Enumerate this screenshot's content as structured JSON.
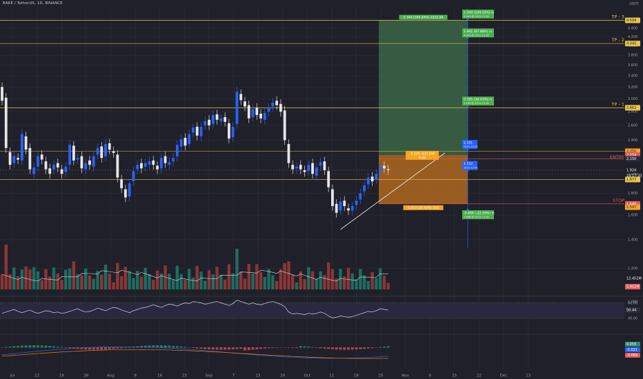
{
  "header": {
    "symbol": "BAKE / TetherUS, 1D, BINANCE",
    "currency": "USDT"
  },
  "chart_data": {
    "type": "candlestick",
    "y_scale": "log",
    "ylim": [
      1.07,
      4.9
    ],
    "price_ticks": [
      "4.600",
      "4.400",
      "4.200",
      "4.000",
      "3.800",
      "3.600",
      "3.400",
      "3.200",
      "3.000",
      "2.800",
      "2.600",
      "2.400",
      "2.200",
      "2.000",
      "1.800",
      "1.600",
      "1.400",
      "1.200",
      "1.000"
    ],
    "x_ticks": [
      "Jul",
      "12",
      "19",
      "26",
      "Aug",
      "9",
      "16",
      "23",
      "Sep",
      "7",
      "13",
      "20",
      "Oct",
      "11",
      "18",
      "25",
      "Nov",
      "8",
      "15",
      "22",
      "Dec",
      "13"
    ],
    "candles": [
      [
        3.2,
        2.97
      ],
      [
        3.02,
        2.3
      ],
      [
        2.25,
        2.1
      ],
      [
        2.12,
        2.2
      ],
      [
        2.18,
        2.16
      ],
      [
        2.15,
        2.48
      ],
      [
        2.45,
        2.28
      ],
      [
        2.3,
        2.05
      ],
      [
        2.0,
        2.07
      ],
      [
        2.08,
        2.2
      ],
      [
        2.22,
        2.16
      ],
      [
        2.14,
        2.05
      ],
      [
        2.06,
        2.0
      ],
      [
        2.05,
        2.1
      ],
      [
        2.12,
        2.07
      ],
      [
        2.05,
        2.0
      ],
      [
        2.02,
        2.08
      ],
      [
        2.1,
        2.34
      ],
      [
        2.33,
        2.15
      ],
      [
        2.16,
        2.18
      ],
      [
        2.2,
        2.06
      ],
      [
        2.05,
        2.12
      ],
      [
        2.15,
        2.1
      ],
      [
        2.08,
        2.2
      ],
      [
        2.22,
        2.3
      ],
      [
        2.32,
        2.18
      ],
      [
        2.2,
        2.35
      ],
      [
        2.36,
        2.28
      ],
      [
        2.26,
        2.24
      ],
      [
        2.22,
        1.96
      ],
      [
        1.94,
        1.85
      ],
      [
        1.84,
        1.76
      ],
      [
        1.77,
        1.9
      ],
      [
        1.92,
        2.03
      ],
      [
        2.05,
        2.1
      ],
      [
        2.12,
        2.06
      ],
      [
        2.08,
        2.12
      ],
      [
        2.1,
        2.14
      ],
      [
        2.15,
        2.1
      ],
      [
        2.09,
        2.05
      ],
      [
        2.06,
        2.18
      ],
      [
        2.2,
        2.12
      ],
      [
        2.1,
        2.13
      ],
      [
        2.14,
        2.18
      ],
      [
        2.2,
        2.34
      ],
      [
        2.32,
        2.41
      ],
      [
        2.43,
        2.33
      ],
      [
        2.35,
        2.48
      ],
      [
        2.5,
        2.57
      ],
      [
        2.58,
        2.46
      ],
      [
        2.45,
        2.58
      ],
      [
        2.6,
        2.66
      ],
      [
        2.68,
        2.6
      ],
      [
        2.62,
        2.75
      ],
      [
        2.76,
        2.68
      ],
      [
        2.66,
        2.7
      ],
      [
        2.72,
        2.65
      ],
      [
        2.63,
        2.42
      ],
      [
        2.44,
        2.58
      ],
      [
        2.62,
        3.12
      ],
      [
        3.08,
        2.98
      ],
      [
        2.96,
        2.88
      ],
      [
        2.9,
        2.7
      ],
      [
        2.72,
        2.84
      ],
      [
        2.86,
        2.75
      ],
      [
        2.77,
        2.7
      ],
      [
        2.68,
        2.78
      ],
      [
        2.8,
        2.86
      ],
      [
        2.88,
        2.94
      ],
      [
        2.97,
        2.9
      ],
      [
        2.92,
        2.8
      ],
      [
        2.82,
        2.4
      ],
      [
        2.35,
        2.12
      ],
      [
        2.1,
        2.05
      ],
      [
        2.06,
        2.08
      ],
      [
        2.1,
        2.05
      ],
      [
        2.04,
        2.02
      ],
      [
        2.03,
        2.1
      ],
      [
        2.12,
        2.0
      ],
      [
        1.98,
        2.07
      ],
      [
        2.09,
        2.13
      ],
      [
        2.14,
        2.04
      ],
      [
        2.03,
        1.86
      ],
      [
        1.84,
        1.68
      ],
      [
        1.7,
        1.62
      ],
      [
        1.64,
        1.72
      ],
      [
        1.73,
        1.68
      ],
      [
        1.66,
        1.64
      ],
      [
        1.64,
        1.68
      ],
      [
        1.69,
        1.73
      ],
      [
        1.74,
        1.8
      ],
      [
        1.82,
        1.88
      ],
      [
        1.89,
        1.96
      ],
      [
        1.97,
        1.92
      ],
      [
        1.94,
        2.0
      ],
      [
        2.02,
        2.08
      ],
      [
        2.09,
        2.06
      ],
      [
        2.05,
        2.04
      ]
    ],
    "price_labels": [
      {
        "text": "TP - 3",
        "price": 4.59,
        "color": "#e8c547"
      },
      {
        "text": "TP - 2",
        "price": 4.05,
        "color": "#e8c547"
      },
      {
        "text": "TP - 1",
        "price": 2.86,
        "color": "#e8c547"
      },
      {
        "text": "ENTRY",
        "price": 2.15,
        "color": "#e05a5a"
      },
      {
        "text": "STOP",
        "price": 1.7,
        "color": "#e05a5a"
      }
    ],
    "right_axis_labels": [
      {
        "text": "4.599",
        "price": 4.59,
        "bg": "#e8c547",
        "fg": "#1f2029"
      },
      {
        "text": "4.045",
        "price": 4.05,
        "bg": "#e8c547",
        "fg": "#1f2029"
      },
      {
        "text": "2.862",
        "price": 2.86,
        "bg": "#e8c547",
        "fg": "#1f2029"
      },
      {
        "text": "2.250",
        "price": 2.26,
        "bg": "#f5a623",
        "fg": "#1f2029"
      },
      {
        "text": "2.154",
        "price": 2.215,
        "bg": "#e05a5a",
        "fg": "#ffffff"
      },
      {
        "text": "2.150",
        "price": 2.17,
        "bg": "#2a2d3a",
        "fg": "#ffffff"
      },
      {
        "text": "1.924",
        "price": 2.04,
        "bg": "#1f2029",
        "fg": "#ffffff"
      },
      {
        "text": "1.877",
        "price": 1.94,
        "bg": "#e8c547",
        "fg": "#1f2029"
      },
      {
        "text": "1.646",
        "price": 1.7,
        "bg": "#e05a5a",
        "fg": "#ffffff"
      },
      {
        "text": "1.597",
        "price": 1.67,
        "bg": "#f5a623",
        "fg": "#1f2029"
      }
    ],
    "countdown": "14:17:33",
    "volume_label": "12.451M",
    "volume_badge": "5.802M",
    "rsi_label": "50.44",
    "rsi_levels": [
      "60.00",
      "40.00"
    ],
    "macd_labels": [
      "0.055",
      "-0.021",
      "-0.069"
    ],
    "position_tool": {
      "target_text": "2.349 (109.26%) 2215.84",
      "stop_text": "0.453 (22.42%) 150",
      "entry_text": "-0.226 -537.596",
      "entry_sub": "4.05"
    },
    "callouts": [
      {
        "title": "2.349 (109.19%) in",
        "sub": "4.461 @ 2021-11-01",
        "price": 4.74
      },
      {
        "title": "1.991 (87.88%) in",
        "sub": "4.042 @ 2021-11-01",
        "price": 4.28
      },
      {
        "title": "0.785 (36.43%) in",
        "sub": "2.939 @ 2021-11-01",
        "price": 2.96
      },
      {
        "title": "2.151",
        "sub": "2021-11-01",
        "price": 2.34
      },
      {
        "title": "2.152",
        "sub": "2021-11-01",
        "price": 2.09
      },
      {
        "title": "-0.484 (-22.49%) in",
        "sub": "1.668 @ 2021-11-01",
        "price": 1.6
      }
    ]
  },
  "colors": {
    "bg": "#1f2029",
    "up": "#2962ff",
    "down": "#e6e6e6",
    "grid": "#2b2e3a",
    "accent_yellow": "#e8c547",
    "target_zone": "#3f6e4b",
    "stop_zone": "#b86b1e",
    "vol_up": "#1f7a6b",
    "vol_down": "#9e3b3b",
    "rsi_bg": "#2a2841",
    "rsi_line": "#d9dbe2",
    "callout_green": "#4caf50"
  }
}
